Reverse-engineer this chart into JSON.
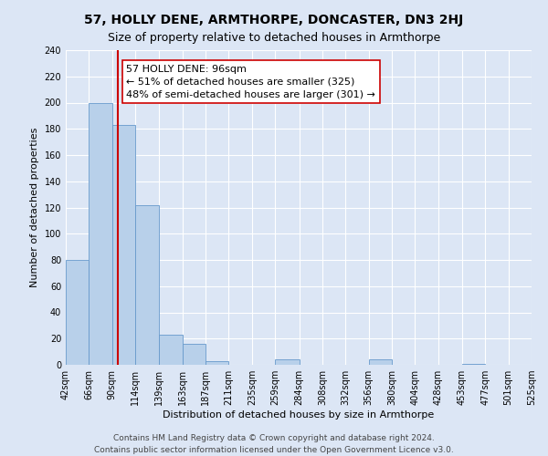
{
  "title": "57, HOLLY DENE, ARMTHORPE, DONCASTER, DN3 2HJ",
  "subtitle": "Size of property relative to detached houses in Armthorpe",
  "xlabel": "Distribution of detached houses by size in Armthorpe",
  "ylabel": "Number of detached properties",
  "bar_heights": [
    80,
    200,
    183,
    122,
    23,
    16,
    3,
    0,
    0,
    4,
    0,
    0,
    0,
    4,
    0,
    0,
    0,
    1,
    0,
    0
  ],
  "bin_edges": [
    42,
    66,
    90,
    114,
    139,
    163,
    187,
    211,
    235,
    259,
    284,
    308,
    332,
    356,
    380,
    404,
    428,
    453,
    477,
    501,
    525
  ],
  "tick_labels": [
    "42sqm",
    "66sqm",
    "90sqm",
    "114sqm",
    "139sqm",
    "163sqm",
    "187sqm",
    "211sqm",
    "235sqm",
    "259sqm",
    "284sqm",
    "308sqm",
    "332sqm",
    "356sqm",
    "380sqm",
    "404sqm",
    "428sqm",
    "453sqm",
    "477sqm",
    "501sqm",
    "525sqm"
  ],
  "bar_color": "#b8d0ea",
  "bar_edge_color": "#6699cc",
  "vline_x": 96,
  "vline_color": "#cc0000",
  "annotation_title": "57 HOLLY DENE: 96sqm",
  "annotation_line1": "← 51% of detached houses are smaller (325)",
  "annotation_line2": "48% of semi-detached houses are larger (301) →",
  "annotation_box_color": "#ffffff",
  "annotation_box_edge": "#cc0000",
  "ylim": [
    0,
    240
  ],
  "yticks": [
    0,
    20,
    40,
    60,
    80,
    100,
    120,
    140,
    160,
    180,
    200,
    220,
    240
  ],
  "footer1": "Contains HM Land Registry data © Crown copyright and database right 2024.",
  "footer2": "Contains public sector information licensed under the Open Government Licence v3.0.",
  "background_color": "#dce6f5",
  "plot_background": "#dce6f5",
  "grid_color": "#ffffff",
  "title_fontsize": 10,
  "subtitle_fontsize": 9,
  "axis_label_fontsize": 8,
  "tick_fontsize": 7,
  "footer_fontsize": 6.5
}
